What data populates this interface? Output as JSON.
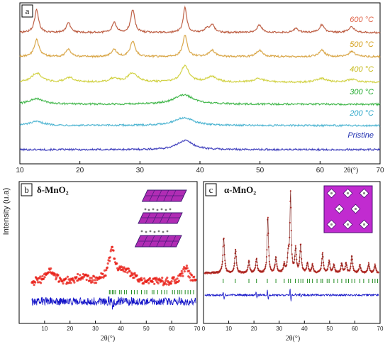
{
  "figure": {
    "ylabel": "Intensity (u.a)",
    "colors": {
      "frame": "#000000"
    }
  },
  "chart_data": [
    {
      "panel": "a",
      "type": "line",
      "xlim": [
        10,
        70
      ],
      "x_ticks": [
        10,
        20,
        30,
        40,
        50,
        60,
        70
      ],
      "xlabel": "2θ(°)",
      "ylabel": "Intensity (u.a)",
      "series": [
        {
          "name": "Pristine",
          "color": "#1a1ab0",
          "label_color": "#1f2fb0",
          "offset": 0,
          "scale": 0.12,
          "peaks": [
            [
              37.5,
              0.5,
              1.6
            ]
          ]
        },
        {
          "name": "200 °C",
          "color": "#2aa6c8",
          "label_color": "#2aa6c8",
          "offset": 1,
          "scale": 0.18,
          "peaks": [
            [
              37.3,
              0.6,
              2.0
            ],
            [
              12.8,
              0.3,
              1.5
            ]
          ]
        },
        {
          "name": "300 °C",
          "color": "#1faa2a",
          "label_color": "#1faa2a",
          "offset": 2,
          "scale": 0.22,
          "peaks": [
            [
              37.3,
              0.6,
              2.0
            ],
            [
              12.8,
              0.35,
              1.5
            ]
          ]
        },
        {
          "name": "400 °C",
          "color": "#c8c81e",
          "label_color": "#c7bb1c",
          "offset": 3,
          "scale": 0.42,
          "peaks": [
            [
              12.8,
              0.5,
              1.0
            ],
            [
              18.3,
              0.25,
              0.8
            ],
            [
              25.6,
              0.2,
              0.8
            ],
            [
              28.8,
              0.5,
              1.0
            ],
            [
              37.5,
              0.9,
              0.8
            ],
            [
              42.0,
              0.3,
              1.0
            ],
            [
              49.8,
              0.2,
              1.0
            ],
            [
              60.2,
              0.2,
              1.0
            ],
            [
              65.3,
              0.15,
              1.0
            ]
          ]
        },
        {
          "name": "500 °C",
          "color": "#d19422",
          "label_color": "#d6a21f",
          "offset": 4,
          "scale": 0.5,
          "peaks": [
            [
              12.8,
              0.8,
              0.5
            ],
            [
              18.1,
              0.35,
              0.5
            ],
            [
              25.7,
              0.35,
              0.5
            ],
            [
              28.8,
              0.7,
              0.5
            ],
            [
              37.5,
              1.0,
              0.45
            ],
            [
              42.0,
              0.3,
              0.6
            ],
            [
              49.9,
              0.3,
              0.6
            ],
            [
              60.3,
              0.3,
              0.6
            ],
            [
              65.3,
              0.25,
              0.6
            ]
          ]
        },
        {
          "name": "600 °C",
          "color": "#b03e1e",
          "label_color": "#e0654a",
          "offset": 5,
          "scale": 0.6,
          "peaks": [
            [
              12.8,
              0.9,
              0.4
            ],
            [
              18.1,
              0.4,
              0.4
            ],
            [
              25.7,
              0.4,
              0.4
            ],
            [
              28.8,
              0.9,
              0.4
            ],
            [
              37.5,
              1.0,
              0.35
            ],
            [
              41.2,
              0.2,
              0.4
            ],
            [
              42.1,
              0.3,
              0.4
            ],
            [
              49.9,
              0.3,
              0.5
            ],
            [
              56.0,
              0.15,
              0.5
            ],
            [
              60.3,
              0.3,
              0.5
            ],
            [
              65.2,
              0.25,
              0.5
            ]
          ]
        }
      ]
    },
    {
      "panel": "b",
      "type": "scatter",
      "title": "δ-MnO₂",
      "xlim": [
        0,
        70
      ],
      "x_ticks": [
        10,
        20,
        30,
        40,
        50,
        60,
        70
      ],
      "xlabel": "2θ(°)",
      "series": [
        {
          "name": "observed",
          "color": "#e81a12",
          "peaks": [
            [
              12.0,
              0.38,
              2.0
            ],
            [
              24.5,
              0.18,
              2.0
            ],
            [
              36.5,
              1.0,
              1.6
            ],
            [
              42.0,
              0.35,
              3.0
            ],
            [
              65.5,
              0.45,
              1.6
            ]
          ]
        },
        {
          "name": "difference",
          "color": "#1414c8"
        },
        {
          "name": "reflections",
          "color": "#1f8a1f",
          "positions": [
            35.5,
            36.0,
            36.7,
            37.3,
            37.9,
            39.5,
            40.2,
            41.4,
            42.2,
            44.2,
            45.3,
            46.4,
            48.1,
            49.4,
            50.2,
            52.3,
            53.0,
            54.5,
            56.0,
            57.2,
            58.1,
            60.3,
            61.2,
            62.4,
            63.2,
            64.0,
            65.3,
            66.4,
            67.4,
            68.6
          ]
        }
      ]
    },
    {
      "panel": "c",
      "type": "scatter",
      "title": "α-MnO₂",
      "xlim": [
        0,
        70
      ],
      "x_ticks": [
        0,
        10,
        20,
        30,
        40,
        50,
        60,
        70
      ],
      "xlabel": "2θ(°)",
      "series": [
        {
          "name": "observed",
          "color": "#c0302a",
          "peaks": [
            [
              8.0,
              0.45,
              0.35
            ],
            [
              12.7,
              0.3,
              0.35
            ],
            [
              18.0,
              0.15,
              0.35
            ],
            [
              21.0,
              0.18,
              0.35
            ],
            [
              25.5,
              0.72,
              0.3
            ],
            [
              28.7,
              0.2,
              0.35
            ],
            [
              32.0,
              0.1,
              0.35
            ],
            [
              33.6,
              0.22,
              0.35
            ],
            [
              34.5,
              1.0,
              0.3
            ],
            [
              36.5,
              0.3,
              0.35
            ],
            [
              38.5,
              0.35,
              0.35
            ],
            [
              41.2,
              0.12,
              0.35
            ],
            [
              43.2,
              0.1,
              0.35
            ],
            [
              47.2,
              0.25,
              0.35
            ],
            [
              49.8,
              0.15,
              0.35
            ],
            [
              51.7,
              0.1,
              0.35
            ],
            [
              54.8,
              0.12,
              0.35
            ],
            [
              56.5,
              0.12,
              0.35
            ],
            [
              58.8,
              0.22,
              0.35
            ],
            [
              62.0,
              0.1,
              0.35
            ],
            [
              65.5,
              0.12,
              0.35
            ],
            [
              68.0,
              0.1,
              0.35
            ]
          ]
        },
        {
          "name": "difference",
          "color": "#1414c8"
        },
        {
          "name": "reflections",
          "color": "#1f8a1f",
          "positions": [
            7.8,
            12.6,
            18.0,
            21.0,
            25.3,
            28.7,
            32.0,
            33.6,
            34.5,
            36.4,
            37.6,
            38.6,
            39.4,
            41.2,
            42.0,
            43.2,
            45.0,
            46.6,
            47.2,
            49.0,
            49.8,
            51.7,
            53.2,
            54.8,
            56.5,
            57.5,
            58.8,
            60.0,
            62.0,
            63.5,
            65.5,
            67.0,
            68.0,
            69.0
          ]
        }
      ]
    }
  ]
}
